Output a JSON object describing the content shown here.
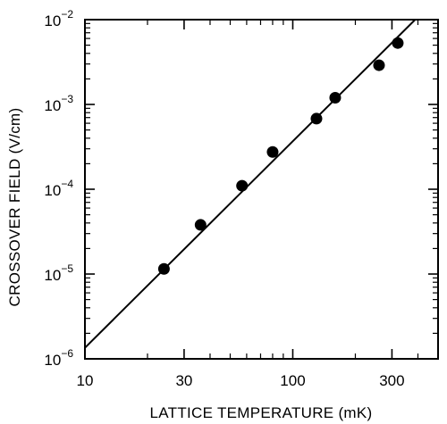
{
  "chart_data": {
    "type": "scatter",
    "title": "",
    "xlabel": "LATTICE TEMPERATURE (mK)",
    "ylabel": "CROSSOVER FIELD (V/cm)",
    "x_scale": "log",
    "y_scale": "log",
    "xlim": [
      10,
      500
    ],
    "ylim": [
      1e-06,
      0.01
    ],
    "x_ticks": [
      {
        "value": 10,
        "label": "10"
      },
      {
        "value": 30,
        "label": "30"
      },
      {
        "value": 100,
        "label": "100"
      },
      {
        "value": 300,
        "label": "300"
      }
    ],
    "y_ticks": [
      {
        "value": 1e-06,
        "base": "10",
        "exp": "−6"
      },
      {
        "value": 1e-05,
        "base": "10",
        "exp": "−5"
      },
      {
        "value": 0.0001,
        "base": "10",
        "exp": "−4"
      },
      {
        "value": 0.001,
        "base": "10",
        "exp": "−3"
      },
      {
        "value": 0.01,
        "base": "10",
        "exp": "−2"
      }
    ],
    "series": [
      {
        "kind": "points",
        "x": [
          24,
          36,
          57,
          80,
          130,
          160,
          260,
          320
        ],
        "y": [
          1.15e-05,
          3.8e-05,
          0.00011,
          0.000275,
          0.00068,
          0.0012,
          0.0029,
          0.0053
        ]
      },
      {
        "kind": "fit-line",
        "x": [
          10,
          388
        ],
        "y": [
          1.35e-06,
          0.01
        ]
      }
    ],
    "grid": false
  }
}
